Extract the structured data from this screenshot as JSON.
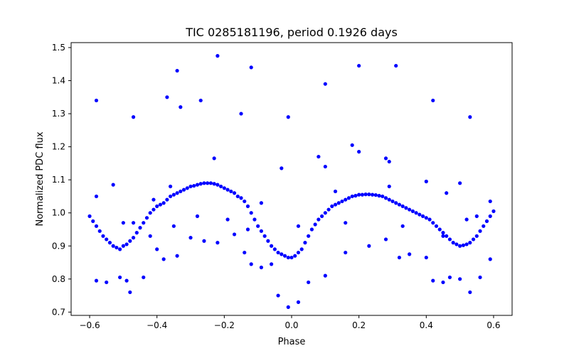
{
  "chart_data": {
    "type": "scatter",
    "title": "TIC 0285181196, period 0.1926 days",
    "xlabel": "Phase",
    "ylabel": "Normalized PDC flux",
    "xlim": [
      -0.655,
      0.655
    ],
    "ylim": [
      0.69,
      1.515
    ],
    "xticks": [
      -0.6,
      -0.4,
      -0.2,
      0.0,
      0.2,
      0.4,
      0.6
    ],
    "xtick_labels": [
      "−0.6",
      "−0.4",
      "−0.2",
      "0.0",
      "0.2",
      "0.4",
      "0.6"
    ],
    "yticks": [
      0.7,
      0.8,
      0.9,
      1.0,
      1.1,
      1.2,
      1.3,
      1.4,
      1.5
    ],
    "ytick_labels": [
      "0.7",
      "0.8",
      "0.9",
      "1.0",
      "1.1",
      "1.2",
      "1.3",
      "1.4",
      "1.5"
    ],
    "grid": false,
    "legend": "none",
    "marker_color": "#0000ff",
    "series": [
      {
        "points": [
          [
            -0.6,
            0.99
          ],
          [
            -0.59,
            0.975
          ],
          [
            -0.58,
            0.96
          ],
          [
            -0.57,
            0.945
          ],
          [
            -0.56,
            0.93
          ],
          [
            -0.55,
            0.92
          ],
          [
            -0.54,
            0.91
          ],
          [
            -0.53,
            0.9
          ],
          [
            -0.52,
            0.895
          ],
          [
            -0.51,
            0.89
          ],
          [
            -0.5,
            0.9
          ],
          [
            -0.49,
            0.905
          ],
          [
            -0.48,
            0.915
          ],
          [
            -0.47,
            0.925
          ],
          [
            -0.46,
            0.94
          ],
          [
            -0.45,
            0.955
          ],
          [
            -0.44,
            0.97
          ],
          [
            -0.43,
            0.985
          ],
          [
            -0.42,
            1.0
          ],
          [
            -0.41,
            1.01
          ],
          [
            -0.4,
            1.02
          ],
          [
            -0.39,
            1.025
          ],
          [
            -0.38,
            1.03
          ],
          [
            -0.37,
            1.04
          ],
          [
            -0.36,
            1.05
          ],
          [
            -0.35,
            1.055
          ],
          [
            -0.34,
            1.06
          ],
          [
            -0.33,
            1.065
          ],
          [
            -0.32,
            1.07
          ],
          [
            -0.31,
            1.075
          ],
          [
            -0.3,
            1.08
          ],
          [
            -0.29,
            1.082
          ],
          [
            -0.28,
            1.085
          ],
          [
            -0.27,
            1.088
          ],
          [
            -0.26,
            1.09
          ],
          [
            -0.25,
            1.09
          ],
          [
            -0.24,
            1.09
          ],
          [
            -0.23,
            1.088
          ],
          [
            -0.22,
            1.085
          ],
          [
            -0.21,
            1.08
          ],
          [
            -0.2,
            1.075
          ],
          [
            -0.19,
            1.07
          ],
          [
            -0.18,
            1.065
          ],
          [
            -0.17,
            1.06
          ],
          [
            -0.16,
            1.05
          ],
          [
            -0.15,
            1.045
          ],
          [
            -0.14,
            1.035
          ],
          [
            -0.13,
            1.02
          ],
          [
            -0.12,
            1.0
          ],
          [
            -0.11,
            0.98
          ],
          [
            -0.1,
            0.96
          ],
          [
            -0.09,
            0.945
          ],
          [
            -0.08,
            0.93
          ],
          [
            -0.07,
            0.915
          ],
          [
            -0.06,
            0.9
          ],
          [
            -0.05,
            0.89
          ],
          [
            -0.04,
            0.88
          ],
          [
            -0.03,
            0.875
          ],
          [
            -0.02,
            0.87
          ],
          [
            -0.01,
            0.865
          ],
          [
            0.0,
            0.865
          ],
          [
            0.01,
            0.87
          ],
          [
            0.02,
            0.88
          ],
          [
            0.03,
            0.89
          ],
          [
            0.04,
            0.91
          ],
          [
            0.05,
            0.93
          ],
          [
            0.06,
            0.95
          ],
          [
            0.07,
            0.965
          ],
          [
            0.08,
            0.98
          ],
          [
            0.09,
            0.99
          ],
          [
            0.1,
            1.0
          ],
          [
            0.11,
            1.01
          ],
          [
            0.12,
            1.02
          ],
          [
            0.13,
            1.025
          ],
          [
            0.14,
            1.03
          ],
          [
            0.15,
            1.035
          ],
          [
            0.16,
            1.04
          ],
          [
            0.17,
            1.045
          ],
          [
            0.18,
            1.05
          ],
          [
            0.19,
            1.052
          ],
          [
            0.2,
            1.055
          ],
          [
            0.21,
            1.055
          ],
          [
            0.22,
            1.056
          ],
          [
            0.23,
            1.056
          ],
          [
            0.24,
            1.055
          ],
          [
            0.25,
            1.054
          ],
          [
            0.26,
            1.052
          ],
          [
            0.27,
            1.05
          ],
          [
            0.28,
            1.045
          ],
          [
            0.29,
            1.04
          ],
          [
            0.3,
            1.035
          ],
          [
            0.31,
            1.03
          ],
          [
            0.32,
            1.025
          ],
          [
            0.33,
            1.02
          ],
          [
            0.34,
            1.015
          ],
          [
            0.35,
            1.01
          ],
          [
            0.36,
            1.005
          ],
          [
            0.37,
            1.0
          ],
          [
            0.38,
            0.995
          ],
          [
            0.39,
            0.99
          ],
          [
            0.4,
            0.985
          ],
          [
            0.41,
            0.98
          ],
          [
            0.42,
            0.97
          ],
          [
            0.43,
            0.96
          ],
          [
            0.44,
            0.95
          ],
          [
            0.45,
            0.94
          ],
          [
            0.46,
            0.93
          ],
          [
            0.47,
            0.92
          ],
          [
            0.48,
            0.91
          ],
          [
            0.49,
            0.905
          ],
          [
            0.5,
            0.9
          ],
          [
            0.51,
            0.902
          ],
          [
            0.52,
            0.905
          ],
          [
            0.53,
            0.91
          ],
          [
            0.54,
            0.92
          ],
          [
            0.55,
            0.93
          ],
          [
            0.56,
            0.945
          ],
          [
            0.57,
            0.96
          ],
          [
            0.58,
            0.975
          ],
          [
            0.59,
            0.99
          ],
          [
            0.6,
            1.005
          ],
          [
            -0.58,
            1.34
          ],
          [
            -0.47,
            1.29
          ],
          [
            -0.37,
            1.35
          ],
          [
            -0.34,
            1.43
          ],
          [
            -0.33,
            1.32
          ],
          [
            -0.27,
            1.34
          ],
          [
            -0.22,
            1.475
          ],
          [
            -0.15,
            1.3
          ],
          [
            -0.12,
            1.44
          ],
          [
            -0.01,
            1.29
          ],
          [
            0.1,
            1.39
          ],
          [
            0.2,
            1.445
          ],
          [
            0.31,
            1.445
          ],
          [
            0.42,
            1.34
          ],
          [
            0.53,
            1.29
          ],
          [
            -0.23,
            1.165
          ],
          [
            0.08,
            1.17
          ],
          [
            0.18,
            1.205
          ],
          [
            0.2,
            1.185
          ],
          [
            0.1,
            1.14
          ],
          [
            -0.03,
            1.135
          ],
          [
            0.28,
            1.165
          ],
          [
            0.29,
            1.155
          ],
          [
            -0.58,
            0.795
          ],
          [
            -0.55,
            0.79
          ],
          [
            -0.51,
            0.805
          ],
          [
            -0.49,
            0.795
          ],
          [
            -0.48,
            0.76
          ],
          [
            -0.44,
            0.805
          ],
          [
            -0.4,
            0.89
          ],
          [
            -0.38,
            0.86
          ],
          [
            -0.34,
            0.87
          ],
          [
            -0.3,
            0.925
          ],
          [
            -0.26,
            0.915
          ],
          [
            -0.22,
            0.91
          ],
          [
            -0.17,
            0.935
          ],
          [
            -0.14,
            0.88
          ],
          [
            -0.12,
            0.845
          ],
          [
            -0.09,
            0.835
          ],
          [
            -0.06,
            0.845
          ],
          [
            -0.04,
            0.75
          ],
          [
            -0.01,
            0.715
          ],
          [
            0.02,
            0.73
          ],
          [
            0.05,
            0.79
          ],
          [
            0.1,
            0.81
          ],
          [
            0.16,
            0.88
          ],
          [
            0.23,
            0.9
          ],
          [
            0.28,
            0.92
          ],
          [
            0.32,
            0.865
          ],
          [
            0.35,
            0.875
          ],
          [
            0.4,
            0.865
          ],
          [
            0.42,
            0.795
          ],
          [
            0.45,
            0.79
          ],
          [
            0.47,
            0.805
          ],
          [
            0.5,
            0.8
          ],
          [
            0.53,
            0.76
          ],
          [
            0.56,
            0.805
          ],
          [
            0.59,
            0.86
          ],
          [
            -0.58,
            1.05
          ],
          [
            -0.53,
            1.085
          ],
          [
            -0.41,
            1.04
          ],
          [
            -0.36,
            1.08
          ],
          [
            -0.09,
            1.03
          ],
          [
            0.13,
            1.065
          ],
          [
            0.29,
            1.08
          ],
          [
            0.4,
            1.095
          ],
          [
            0.46,
            1.06
          ],
          [
            0.5,
            1.09
          ],
          [
            0.59,
            1.035
          ],
          [
            -0.42,
            0.93
          ],
          [
            -0.5,
            0.97
          ],
          [
            -0.47,
            0.97
          ],
          [
            -0.35,
            0.96
          ],
          [
            -0.28,
            0.99
          ],
          [
            -0.19,
            0.98
          ],
          [
            -0.13,
            0.95
          ],
          [
            0.02,
            0.96
          ],
          [
            0.16,
            0.97
          ],
          [
            0.33,
            0.96
          ],
          [
            0.45,
            0.93
          ],
          [
            0.52,
            0.98
          ],
          [
            0.55,
            0.99
          ]
        ]
      }
    ]
  }
}
